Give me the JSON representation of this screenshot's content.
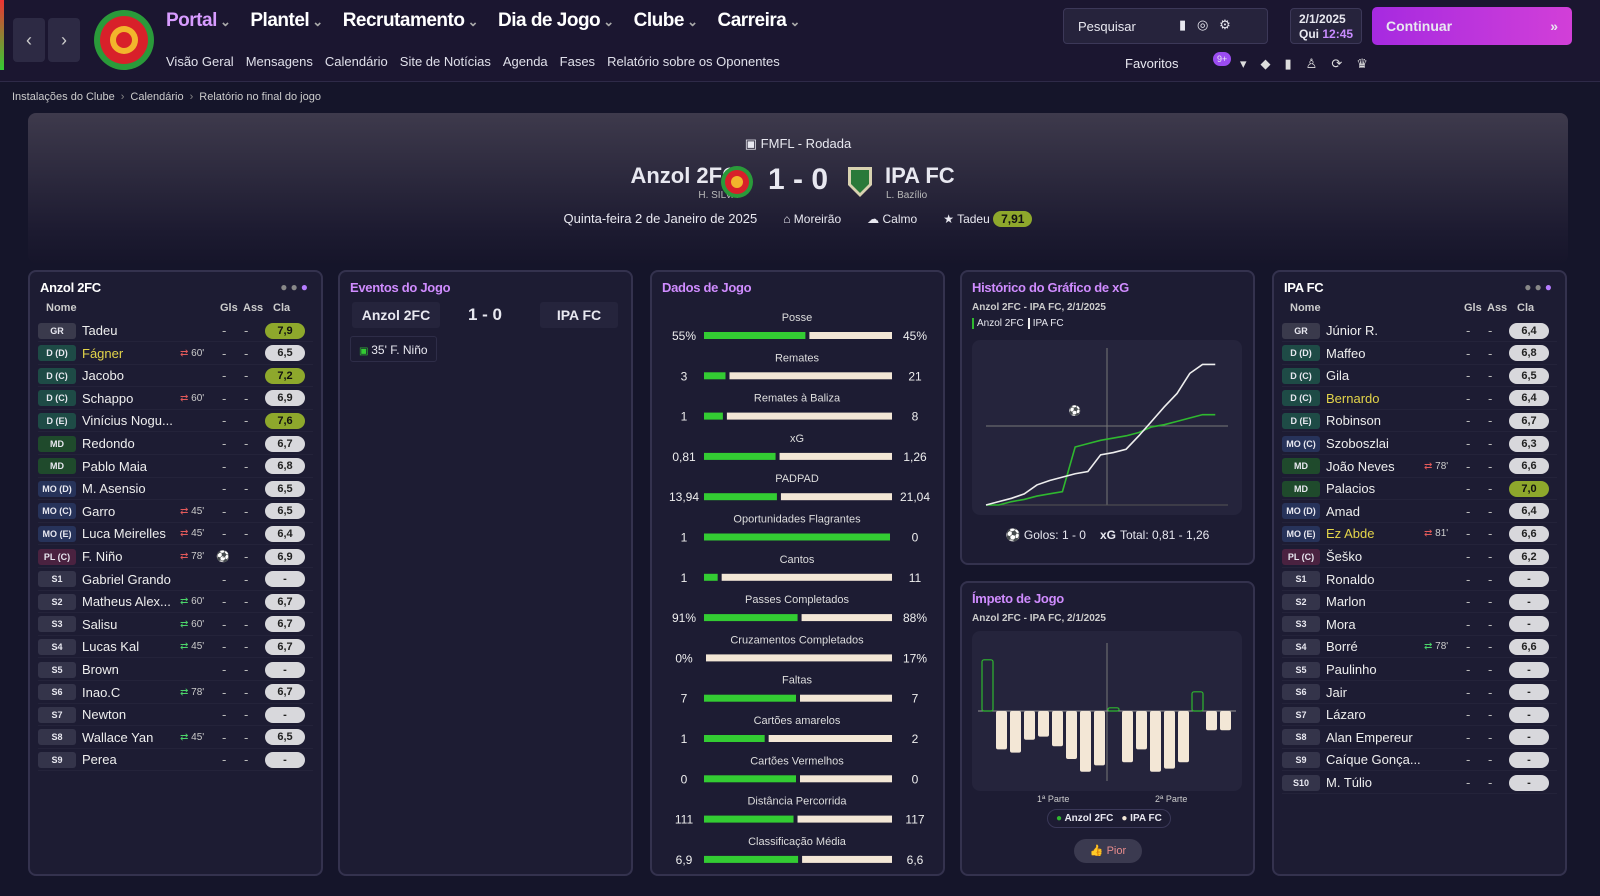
{
  "nav": {
    "menus": [
      "Portal",
      "Plantel",
      "Recrutamento",
      "Dia de Jogo",
      "Clube",
      "Carreira"
    ],
    "submenu": [
      "Visão Geral",
      "Mensagens",
      "Calendário",
      "Site de Notícias",
      "Agenda",
      "Fases",
      "Relatório sobre os Oponentes"
    ],
    "search": "Pesquisar",
    "date": "2/1/2025",
    "weekday": "Qui",
    "time": "12:45",
    "continue": "Continuar",
    "favorites": "Favoritos",
    "badge": "9+"
  },
  "breadcrumb": [
    "Instalações do Clube",
    "Calendário",
    "Relatório no final do jogo"
  ],
  "match": {
    "competition": "FMFL - Rodada",
    "home": "Anzol 2FC",
    "home_manager": "H. SILVA",
    "score": "1 - 0",
    "away": "IPA FC",
    "away_manager": "L. Bazílio",
    "date": "Quinta-feira 2 de Janeiro de 2025",
    "stadium": "Moreirão",
    "weather": "Calmo",
    "player_of_match": "Tadeu",
    "player_of_match_rating": "7,91"
  },
  "home_lineup": {
    "title": "Anzol 2FC",
    "columns": [
      "Nome",
      "Gls",
      "Ass",
      "Cla"
    ],
    "rows": [
      {
        "pos": "GR",
        "name": "Tadeu",
        "gls": "-",
        "ass": "-",
        "rating": "7,9"
      },
      {
        "pos": "D (D)",
        "name": "Fágner",
        "name_color": "#e3d44a",
        "sub": "60'",
        "gls": "-",
        "ass": "-",
        "rating": "6,5"
      },
      {
        "pos": "D (C)",
        "name": "Jacobo",
        "gls": "-",
        "ass": "-",
        "rating": "7,2"
      },
      {
        "pos": "D (C)",
        "name": "Schappo",
        "sub": "60'",
        "gls": "-",
        "ass": "-",
        "rating": "6,9"
      },
      {
        "pos": "D (E)",
        "name": "Vinícius Nogu...",
        "gls": "-",
        "ass": "-",
        "rating": "7,6"
      },
      {
        "pos": "MD",
        "name": "Redondo",
        "gls": "-",
        "ass": "-",
        "rating": "6,7"
      },
      {
        "pos": "MD",
        "name": "Pablo Maia",
        "gls": "-",
        "ass": "-",
        "rating": "6,8"
      },
      {
        "pos": "MO (D)",
        "name": "M. Asensio",
        "gls": "-",
        "ass": "-",
        "rating": "6,5"
      },
      {
        "pos": "MO (C)",
        "name": "Garro",
        "sub": "45'",
        "gls": "-",
        "ass": "-",
        "rating": "6,5"
      },
      {
        "pos": "MO (E)",
        "name": "Luca Meirelles",
        "sub": "45'",
        "gls": "-",
        "ass": "-",
        "rating": "6,4"
      },
      {
        "pos": "PL (C)",
        "name": "F. Niño",
        "sub": "78'",
        "scored": true,
        "gls": "-",
        "ass": "-",
        "rating": "6,9"
      },
      {
        "pos": "S1",
        "name": "Gabriel Grando",
        "gls": "-",
        "ass": "-",
        "rating": "-"
      },
      {
        "pos": "S2",
        "name": "Matheus Alex...",
        "sub": "60'",
        "gls": "-",
        "ass": "-",
        "rating": "6,7"
      },
      {
        "pos": "S3",
        "name": "Salisu",
        "sub": "60'",
        "gls": "-",
        "ass": "-",
        "rating": "6,7"
      },
      {
        "pos": "S4",
        "name": "Lucas Kal",
        "sub": "45'",
        "gls": "-",
        "ass": "-",
        "rating": "6,7"
      },
      {
        "pos": "S5",
        "name": "Brown",
        "gls": "-",
        "ass": "-",
        "rating": "-"
      },
      {
        "pos": "S6",
        "name": "Inao.C",
        "sub": "78'",
        "gls": "-",
        "ass": "-",
        "rating": "6,7"
      },
      {
        "pos": "S7",
        "name": "Newton",
        "gls": "-",
        "ass": "-",
        "rating": "-"
      },
      {
        "pos": "S8",
        "name": "Wallace Yan",
        "sub": "45'",
        "gls": "-",
        "ass": "-",
        "rating": "6,5"
      },
      {
        "pos": "S9",
        "name": "Perea",
        "gls": "-",
        "ass": "-",
        "rating": "-"
      }
    ]
  },
  "away_lineup": {
    "title": "IPA FC",
    "columns": [
      "Nome",
      "Gls",
      "Ass",
      "Cla"
    ],
    "rows": [
      {
        "pos": "GR",
        "name": "Júnior R.",
        "gls": "-",
        "ass": "-",
        "rating": "6,4"
      },
      {
        "pos": "D (D)",
        "name": "Maffeo",
        "gls": "-",
        "ass": "-",
        "rating": "6,8"
      },
      {
        "pos": "D (C)",
        "name": "Gila",
        "gls": "-",
        "ass": "-",
        "rating": "6,5"
      },
      {
        "pos": "D (C)",
        "name": "Bernardo",
        "name_color": "#e3d44a",
        "gls": "-",
        "ass": "-",
        "rating": "6,4"
      },
      {
        "pos": "D (E)",
        "name": "Robinson",
        "gls": "-",
        "ass": "-",
        "rating": "6,7"
      },
      {
        "pos": "MO (C)",
        "name": "Szoboszlai",
        "gls": "-",
        "ass": "-",
        "rating": "6,3"
      },
      {
        "pos": "MD",
        "name": "João Neves",
        "sub": "78'",
        "gls": "-",
        "ass": "-",
        "rating": "6,6"
      },
      {
        "pos": "MD",
        "name": "Palacios",
        "gls": "-",
        "ass": "-",
        "rating": "7,0"
      },
      {
        "pos": "MO (D)",
        "name": "Amad",
        "gls": "-",
        "ass": "-",
        "rating": "6,4"
      },
      {
        "pos": "MO (E)",
        "name": "Ez Abde",
        "name_color": "#e3d44a",
        "sub": "81'",
        "gls": "-",
        "ass": "-",
        "rating": "6,6"
      },
      {
        "pos": "PL (C)",
        "name": "Šeško",
        "gls": "-",
        "ass": "-",
        "rating": "6,2"
      },
      {
        "pos": "S1",
        "name": "Ronaldo",
        "gls": "-",
        "ass": "-",
        "rating": "-"
      },
      {
        "pos": "S2",
        "name": "Marlon",
        "gls": "-",
        "ass": "-",
        "rating": "-"
      },
      {
        "pos": "S3",
        "name": "Mora",
        "gls": "-",
        "ass": "-",
        "rating": "-"
      },
      {
        "pos": "S4",
        "name": "Borré",
        "sub": "78'",
        "gls": "-",
        "ass": "-",
        "rating": "6,6"
      },
      {
        "pos": "S5",
        "name": "Paulinho",
        "gls": "-",
        "ass": "-",
        "rating": "-"
      },
      {
        "pos": "S6",
        "name": "Jair",
        "gls": "-",
        "ass": "-",
        "rating": "-"
      },
      {
        "pos": "S7",
        "name": "Lázaro",
        "gls": "-",
        "ass": "-",
        "rating": "-"
      },
      {
        "pos": "S8",
        "name": "Alan Empereur",
        "gls": "-",
        "ass": "-",
        "rating": "-"
      },
      {
        "pos": "S9",
        "name": "Caíque Gonça...",
        "gls": "-",
        "ass": "-",
        "rating": "-"
      },
      {
        "pos": "S10",
        "name": "M. Túlio",
        "gls": "-",
        "ass": "-",
        "rating": "-"
      }
    ]
  },
  "events": {
    "title": "Eventos do Jogo",
    "home": "Anzol 2FC",
    "score": "1 - 0",
    "away": "IPA FC",
    "items": [
      "35' F. Niño"
    ]
  },
  "stats": {
    "title": "Dados de Jogo",
    "home_color": "#33cc33",
    "away_color": "#f3e7d6",
    "items": [
      {
        "name": "Posse",
        "home": 55,
        "away": 45,
        "home_label": "55%",
        "away_label": "45%"
      },
      {
        "name": "Remates",
        "home": 3,
        "away": 21
      },
      {
        "name": "Remates à Baliza",
        "home": 1,
        "away": 8
      },
      {
        "name": "xG",
        "home": 0.81,
        "away": 1.26,
        "home_label": "0,81",
        "away_label": "1,26"
      },
      {
        "name": "PADPAD",
        "home": 13.94,
        "away": 21.04,
        "home_label": "13,94",
        "away_label": "21,04"
      },
      {
        "name": "Oportunidades Flagrantes",
        "home": 1,
        "away": 0
      },
      {
        "name": "Cantos",
        "home": 1,
        "away": 11
      },
      {
        "name": "Passes Completados",
        "home": 91,
        "away": 88,
        "home_label": "91%",
        "away_label": "88%"
      },
      {
        "name": "Cruzamentos Completados",
        "home": 0,
        "away": 17,
        "home_label": "0%",
        "away_label": "17%"
      },
      {
        "name": "Faltas",
        "home": 7,
        "away": 7
      },
      {
        "name": "Cartões amarelos",
        "home": 1,
        "away": 2
      },
      {
        "name": "Cartões Vermelhos",
        "home": 0,
        "away": 0
      },
      {
        "name": "Distância Percorrida",
        "home": 111,
        "away": 117
      },
      {
        "name": "Classificação Média",
        "home": 6.9,
        "away": 6.6,
        "home_label": "6,9",
        "away_label": "6,6"
      }
    ]
  },
  "xg_chart": {
    "type": "line",
    "title": "Histórico do Gráfico de xG",
    "subtitle": "Anzol 2FC - IPA FC, 2/1/2025",
    "x": [
      0,
      5,
      10,
      15,
      20,
      25,
      30,
      35,
      40,
      45,
      50,
      55,
      60,
      65,
      70,
      75,
      80,
      85,
      90
    ],
    "series": [
      {
        "name": "Anzol 2FC",
        "color": "#2fb82f",
        "values": [
          0,
          0,
          0.03,
          0.05,
          0.08,
          0.1,
          0.12,
          0.52,
          0.55,
          0.58,
          0.6,
          0.62,
          0.65,
          0.7,
          0.72,
          0.75,
          0.78,
          0.81,
          0.81
        ]
      },
      {
        "name": "IPA FC",
        "color": "#eeeeee",
        "values": [
          0,
          0.03,
          0.06,
          0.1,
          0.18,
          0.22,
          0.25,
          0.28,
          0.3,
          0.45,
          0.47,
          0.5,
          0.62,
          0.75,
          0.88,
          1.0,
          1.18,
          1.26,
          1.26
        ]
      }
    ],
    "xlim": [
      0,
      95
    ],
    "ylim": [
      0,
      1.3
    ],
    "goal_minute": 35,
    "goals_label": "Golos: 1 - 0",
    "xg_label": "xG",
    "total_label": "Total: 0,81 - 1,26"
  },
  "momentum": {
    "type": "bar",
    "title": "Ímpeto de Jogo",
    "subtitle": "Anzol 2FC - IPA FC, 2/1/2025",
    "halves": [
      "1ª Parte",
      "2ª Parte"
    ],
    "values": [
      0.8,
      -0.6,
      -0.65,
      -0.45,
      -0.4,
      -0.55,
      -0.75,
      -0.95,
      -0.85,
      0.05,
      -0.8,
      -0.6,
      -0.95,
      -0.9,
      -0.8,
      0.3,
      -0.3,
      -0.3
    ],
    "ylim": [
      -1,
      1
    ],
    "home_color": "#2fb82f",
    "away_color": "#f3e7d6",
    "legend": [
      "Anzol 2FC",
      "IPA FC"
    ],
    "button": "Pior"
  }
}
